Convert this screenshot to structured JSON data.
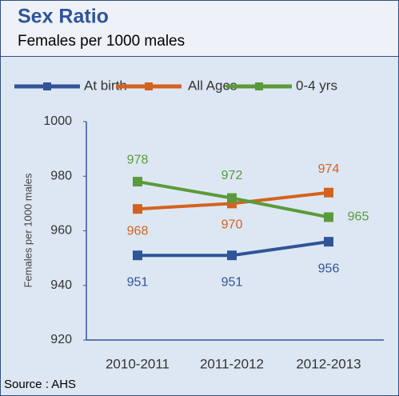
{
  "chart_data": {
    "type": "line",
    "title": "Sex Ratio",
    "subtitle": "Females per 1000 males",
    "y_label": "Females per 1000 males",
    "source": "Source : AHS",
    "categories": [
      "2010-2011",
      "2011-2012",
      "2012-2013"
    ],
    "series": [
      {
        "name": "At birth",
        "color": "#2f5597",
        "values": [
          951,
          951,
          956
        ]
      },
      {
        "name": "All Ages",
        "color": "#d4621e",
        "values": [
          968,
          970,
          974
        ]
      },
      {
        "name": "0-4 yrs",
        "color": "#5b9a3c",
        "values": [
          978,
          972,
          965
        ]
      }
    ],
    "ylim": [
      920,
      1000
    ],
    "yticks": [
      920,
      940,
      960,
      980,
      1000
    ],
    "grid": false,
    "legend": "top"
  }
}
